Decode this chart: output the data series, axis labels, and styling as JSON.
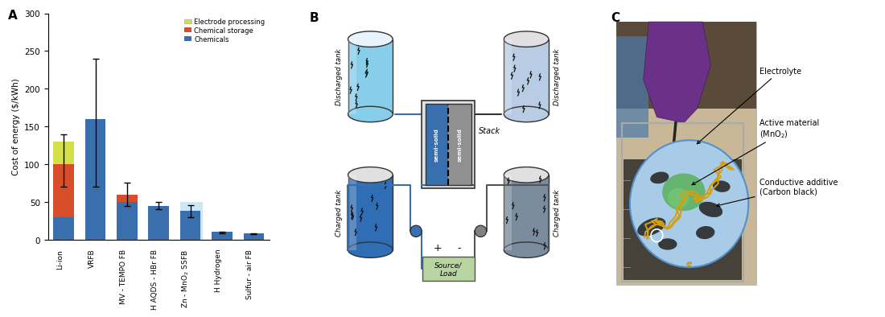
{
  "bar_categories": [
    "Li-ion",
    "VRFB",
    "MV - TEMPO FB",
    "H AQDS - HBr FB",
    "Zn - MnO$_2$ SSFB",
    "H Hydrogen",
    "Sulfur - air FB"
  ],
  "chemicals": [
    30,
    160,
    50,
    45,
    38,
    10,
    8
  ],
  "chemical_storage": [
    70,
    0,
    10,
    0,
    0,
    0,
    0
  ],
  "electrode_processing": [
    30,
    0,
    0,
    0,
    0,
    0,
    0
  ],
  "error_low": [
    30,
    90,
    15,
    5,
    8,
    2,
    1
  ],
  "error_high": [
    40,
    80,
    15,
    5,
    8,
    0,
    0
  ],
  "error_centers": [
    100,
    160,
    60,
    45,
    38,
    10,
    8
  ],
  "ylim": [
    0,
    300
  ],
  "yticks": [
    0,
    50,
    100,
    150,
    200,
    250,
    300
  ],
  "ylabel": "Cost of energy ($/kWh)",
  "color_chemicals": "#3a6fad",
  "color_chemical_storage": "#d94e2a",
  "color_electrode": "#d4e04a",
  "highlight_box_color": "#cde8f5",
  "panel_A_label": "A",
  "panel_B_label": "B",
  "panel_C_label": "C",
  "bg_color": "#ffffff"
}
